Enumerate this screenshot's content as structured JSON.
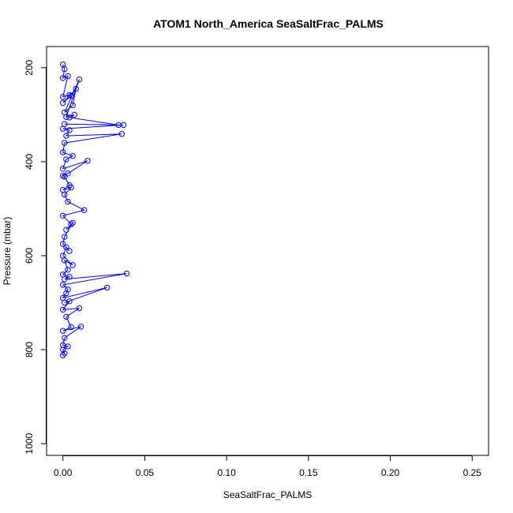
{
  "chart_data": {
    "type": "line",
    "title": "ATOM1 North_America SeaSaltFrac_PALMS",
    "xlabel": "SeaSaltFrac_PALMS",
    "ylabel": "Pressure (mbar)",
    "xlim": [
      -0.01,
      0.26
    ],
    "ylim": [
      1025,
      155
    ],
    "y_reversed": true,
    "x_ticks": [
      0.0,
      0.05,
      0.1,
      0.15,
      0.2,
      0.25
    ],
    "x_tick_labels": [
      "0.00",
      "0.05",
      "0.10",
      "0.15",
      "0.20",
      "0.25"
    ],
    "y_ticks": [
      200,
      400,
      600,
      800,
      1000
    ],
    "y_tick_labels": [
      "200",
      "400",
      "600",
      "800",
      "1000"
    ],
    "grid": false,
    "legend": "none",
    "style": "line-with-open-circles",
    "colors": {
      "series": "#0000ff",
      "axes": "#000000"
    },
    "series": [
      {
        "x": [
          0.0,
          0.001,
          0.0,
          0.003,
          0.0,
          0.004,
          0.005,
          0.0,
          0.008,
          0.006,
          0.001,
          0.01,
          0.002,
          0.007,
          0.004,
          0.034,
          0.001,
          0.037,
          0.0,
          0.004,
          0.002,
          0.036,
          0.001,
          0.0,
          0.006,
          0.002,
          0.0,
          0.015,
          0.003,
          0.0,
          0.001,
          0.004,
          0.0,
          0.005,
          0.001,
          0.003,
          0.013,
          0.0,
          0.005,
          0.002,
          0.006,
          0.001,
          0.0,
          0.004,
          0.002,
          0.0,
          0.006,
          0.001,
          0.003,
          0.0,
          0.004,
          0.001,
          0.039,
          0.0,
          0.003,
          0.002,
          0.0,
          0.027,
          0.001,
          0.004,
          0.0,
          0.01,
          0.002,
          0.005,
          0.0,
          0.011,
          0.001,
          0.0,
          0.003,
          0.0,
          0.001,
          0.0
        ],
        "y": [
          193,
          203,
          222,
          218,
          262,
          258,
          260,
          275,
          245,
          280,
          295,
          225,
          305,
          300,
          306,
          322,
          320,
          322,
          330,
          333,
          345,
          341,
          360,
          380,
          388,
          395,
          415,
          398,
          425,
          430,
          432,
          450,
          460,
          455,
          470,
          485,
          503,
          515,
          533,
          545,
          530,
          560,
          575,
          590,
          582,
          600,
          620,
          610,
          630,
          640,
          645,
          650,
          638,
          662,
          672,
          680,
          690,
          668,
          700,
          697,
          715,
          712,
          730,
          752,
          760,
          751,
          775,
          790,
          793,
          800,
          808,
          812
        ]
      }
    ]
  }
}
